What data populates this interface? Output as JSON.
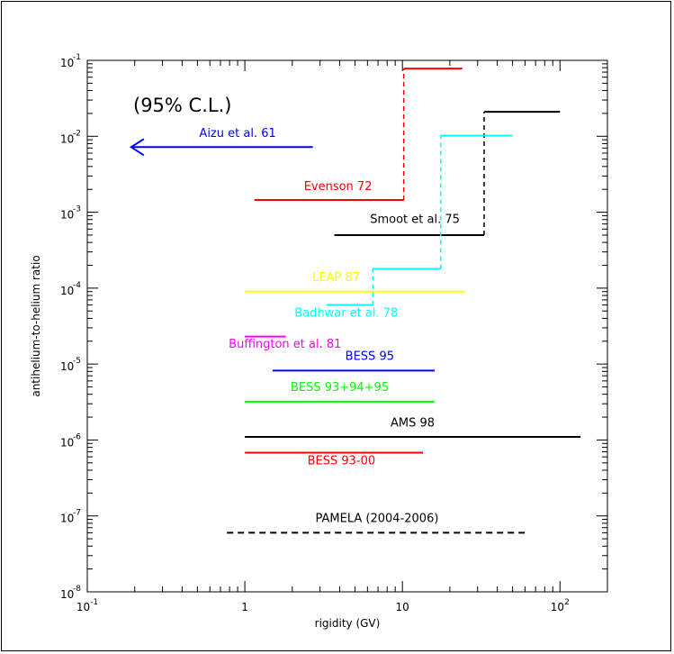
{
  "chart_data": {
    "type": "line",
    "xlabel": "rigidity (GV)",
    "ylabel": "antihelium-to-helium ratio",
    "xlim": [
      0.1,
      200
    ],
    "ylim": [
      1e-08,
      0.1
    ],
    "xscale": "log",
    "yscale": "log",
    "grid": false,
    "annotations": [
      "(95% C.L.)"
    ],
    "x_ticks": [
      {
        "value": 0.1,
        "base": "10",
        "exp": "-1"
      },
      {
        "value": 1,
        "base": "1",
        "exp": ""
      },
      {
        "value": 10,
        "base": "10",
        "exp": ""
      },
      {
        "value": 100,
        "base": "10",
        "exp": "2"
      }
    ],
    "y_ticks": [
      {
        "value": 1e-08,
        "exp": "-8"
      },
      {
        "value": 1e-07,
        "exp": "-7"
      },
      {
        "value": 1e-06,
        "exp": "-6"
      },
      {
        "value": 1e-05,
        "exp": "-5"
      },
      {
        "value": 0.0001,
        "exp": "-4"
      },
      {
        "value": 0.001,
        "exp": "-3"
      },
      {
        "value": 0.01,
        "exp": "-2"
      },
      {
        "value": 0.1,
        "exp": "-1"
      }
    ],
    "series": [
      {
        "name": "Aizu et al. 61",
        "color": "#0000ff",
        "arrow": "left",
        "segments": [
          {
            "x": [
              0.19,
              2.7
            ],
            "y": 0.0072
          }
        ],
        "label_pos": [
          0.9,
          0.0098
        ]
      },
      {
        "name": "Evenson 72",
        "color": "#ff0000",
        "segments": [
          {
            "x": [
              1.15,
              10.2
            ],
            "y": 0.00145
          },
          {
            "x": [
              10.2,
              24
            ],
            "y": 0.078
          }
        ],
        "risers": [
          {
            "x": 10.2,
            "y": [
              0.00145,
              0.078
            ]
          }
        ],
        "label_pos": [
          3.9,
          0.00195
        ]
      },
      {
        "name": "Smoot et al. 75",
        "color": "#000000",
        "segments": [
          {
            "x": [
              3.7,
              33
            ],
            "y": 0.0005
          },
          {
            "x": [
              33,
              100
            ],
            "y": 0.021
          }
        ],
        "risers": [
          {
            "x": 33,
            "y": [
              0.0005,
              0.021
            ]
          }
        ],
        "label_pos": [
          12,
          0.00072
        ]
      },
      {
        "name": "Badhwar et al. 78",
        "color": "#00ffff",
        "segments": [
          {
            "x": [
              3.3,
              6.5
            ],
            "y": 6e-05
          },
          {
            "x": [
              6.5,
              17.5
            ],
            "y": 0.00018
          },
          {
            "x": [
              17.5,
              50
            ],
            "y": 0.0102
          }
        ],
        "risers": [
          {
            "x": 6.5,
            "y": [
              6e-05,
              0.00018
            ]
          },
          {
            "x": 17.5,
            "y": [
              0.00018,
              0.0102
            ]
          }
        ],
        "label_pos": [
          4.4,
          4.2e-05
        ]
      },
      {
        "name": "LEAP 87",
        "color": "#ffff00",
        "segments": [
          {
            "x": [
              1,
              25
            ],
            "y": 9e-05
          }
        ],
        "label_pos": [
          3.8,
          0.000124
        ]
      },
      {
        "name": "Buffington et al. 81",
        "color": "#ff00ff",
        "segments": [
          {
            "x": [
              1,
              1.82
            ],
            "y": 2.3e-05
          }
        ],
        "label_pos": [
          1.8,
          1.65e-05
        ]
      },
      {
        "name": "BESS 95",
        "color": "#0000ff",
        "segments": [
          {
            "x": [
              1.5,
              16
            ],
            "y": 8.2e-06
          }
        ],
        "label_pos": [
          6.2,
          1.14e-05
        ]
      },
      {
        "name": "BESS 93+94+95",
        "color": "#00ff00",
        "segments": [
          {
            "x": [
              1,
              16
            ],
            "y": 3.2e-06
          }
        ],
        "label_pos": [
          4,
          4.4e-06
        ]
      },
      {
        "name": "AMS 98",
        "color": "#000000",
        "segments": [
          {
            "x": [
              1,
              135
            ],
            "y": 1.1e-06
          }
        ],
        "label_pos": [
          11.6,
          1.5e-06
        ]
      },
      {
        "name": "BESS 93-00",
        "color": "#ff0000",
        "segments": [
          {
            "x": [
              1,
              13.5
            ],
            "y": 6.8e-07
          }
        ],
        "label_pos": [
          4.1,
          4.8e-07
        ]
      },
      {
        "name": "PAMELA (2004-2006)",
        "color": "#000000",
        "dashed": true,
        "segments": [
          {
            "x": [
              0.77,
              62
            ],
            "y": 6e-08
          }
        ],
        "label_pos": [
          6.9,
          8.3e-08
        ]
      }
    ]
  }
}
